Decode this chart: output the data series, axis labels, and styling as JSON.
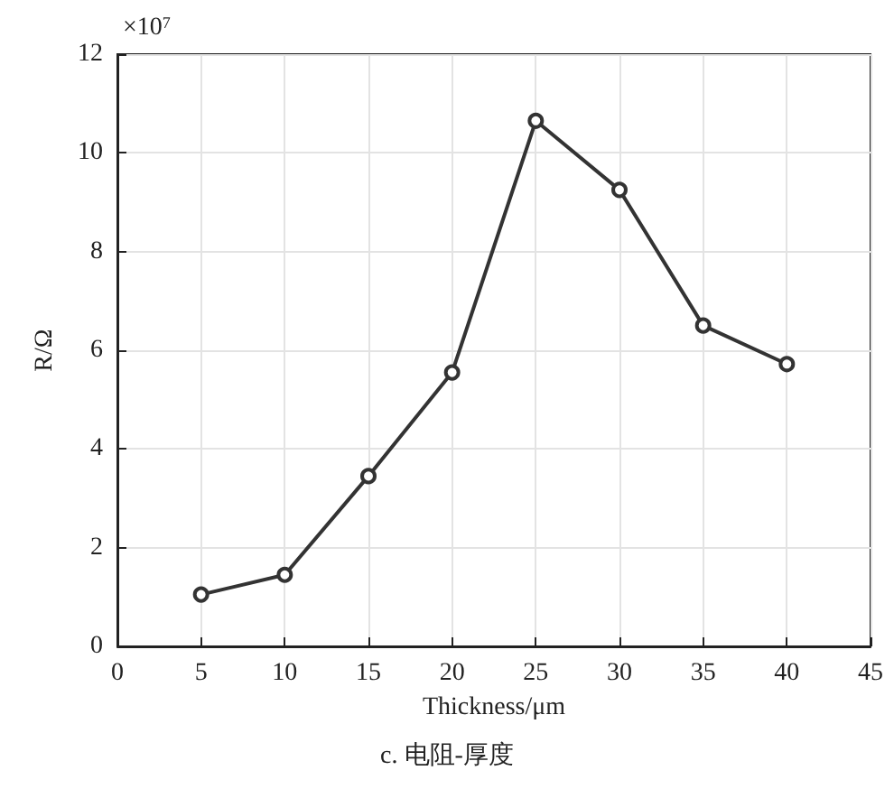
{
  "chart_data": {
    "type": "line",
    "xlabel": "Thickness/μm",
    "ylabel": "R/Ω",
    "annotations": [
      "×10$^{7}$",
      "c. 电阻-厚度"
    ],
    "x": [
      5,
      10,
      15,
      20,
      25,
      30,
      35,
      40
    ],
    "series": [
      {
        "color": "#333333",
        "values": [
          1.05,
          1.45,
          3.45,
          5.55,
          10.65,
          9.25,
          6.5,
          5.72
        ]
      }
    ],
    "xlim": [
      0,
      45
    ],
    "xticks": [
      0,
      5,
      10,
      15,
      20,
      25,
      30,
      35,
      40,
      45
    ],
    "ylim": [
      0,
      12
    ],
    "yticks": [
      0,
      2,
      4,
      6,
      8,
      10,
      12
    ],
    "grid": true,
    "marker": "circle",
    "line_style": "solid"
  }
}
